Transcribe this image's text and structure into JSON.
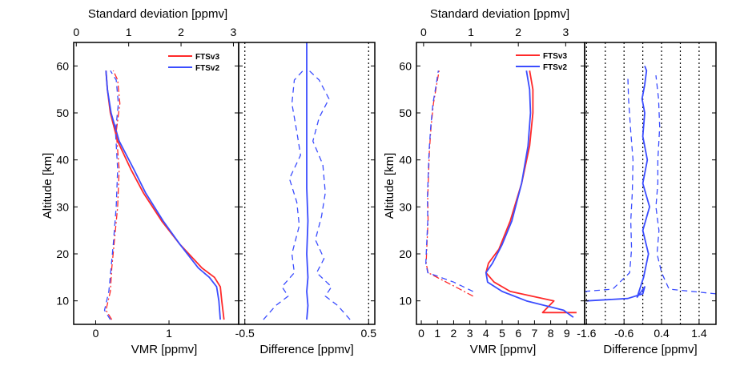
{
  "chart_data": [
    {
      "type": "line",
      "panel": "left-profile",
      "xlabel": "VMR [ppmv]",
      "ylabel": "Altitude [km]",
      "xlim": [
        -0.3,
        1.95
      ],
      "ylim": [
        5,
        65
      ],
      "x_ticks": [
        "0",
        "1"
      ],
      "y_ticks": [
        "10",
        "20",
        "30",
        "40",
        "50",
        "60"
      ],
      "top_xlabel": "Standard deviation [ppmv]",
      "top_xlim": [
        -0.05,
        3.1
      ],
      "top_ticks": [
        "0",
        "1",
        "2",
        "3"
      ],
      "legend": {
        "placement": "top-right",
        "entries": [
          "FTSv3",
          "FTSv2"
        ]
      },
      "series": [
        {
          "name": "FTSv3",
          "kind": "VMR mean",
          "color": "#ff2a2a",
          "style": "solid",
          "x": [
            1.75,
            1.72,
            1.7,
            1.62,
            1.45,
            1.15,
            0.9,
            0.65,
            0.48,
            0.3,
            0.2,
            0.16,
            0.14
          ],
          "y": [
            6,
            10,
            13,
            15,
            17,
            22,
            27,
            33,
            38,
            44,
            50,
            55,
            59
          ]
        },
        {
          "name": "FTSv2",
          "kind": "VMR mean",
          "color": "#3b4dff",
          "style": "solid",
          "x": [
            1.7,
            1.68,
            1.65,
            1.55,
            1.4,
            1.15,
            0.92,
            0.68,
            0.52,
            0.32,
            0.21,
            0.16,
            0.14
          ],
          "y": [
            6,
            10,
            13,
            15,
            17,
            22,
            27,
            33,
            38,
            44,
            50,
            55,
            59
          ]
        },
        {
          "name": "FTSv3",
          "kind": "standard deviation",
          "color": "#ff2a2a",
          "style": "dash-dot",
          "x": [
            0.22,
            0.14,
            0.2,
            0.22,
            0.25,
            0.3,
            0.32,
            0.28,
            0.33,
            0.3,
            0.24
          ],
          "y": [
            6,
            8,
            12,
            17,
            22,
            30,
            38,
            46,
            52,
            57,
            59
          ]
        },
        {
          "name": "FTSv2",
          "kind": "standard deviation",
          "color": "#3b4dff",
          "style": "dashed",
          "x": [
            0.2,
            0.12,
            0.18,
            0.21,
            0.24,
            0.28,
            0.3,
            0.27,
            0.31,
            0.28,
            0.2
          ],
          "y": [
            6,
            8,
            12,
            17,
            22,
            30,
            38,
            46,
            52,
            57,
            59
          ]
        }
      ]
    },
    {
      "type": "line",
      "panel": "left-difference",
      "xlabel": "Difference [ppmv]",
      "xlim": [
        -0.55,
        0.55
      ],
      "ylim": [
        5,
        65
      ],
      "x_ticks": [
        "-0.5",
        "0.5"
      ],
      "x_tick_values": [
        -0.5,
        0.5
      ],
      "vertical_dotted_lines": [
        -0.5,
        0.5
      ],
      "series": [
        {
          "kind": "mean difference",
          "color": "#3b4dff",
          "style": "solid",
          "x": [
            0.0,
            0.01,
            0.0,
            0.01,
            0.0,
            0.01,
            0.0,
            0.0,
            0.0,
            0.0,
            0.0,
            0.0
          ],
          "y": [
            6,
            9,
            12,
            15,
            20,
            27,
            34,
            40,
            46,
            52,
            58,
            65
          ]
        },
        {
          "kind": "difference spread (upper)",
          "color": "#3b4dff",
          "style": "dashed",
          "x": [
            0.35,
            0.25,
            0.15,
            0.2,
            0.08,
            0.14,
            0.07,
            0.12,
            0.15,
            0.13,
            0.05,
            0.1,
            0.18,
            0.1,
            0.02
          ],
          "y": [
            6,
            9,
            11,
            13,
            16,
            19,
            23,
            28,
            33,
            39,
            44,
            49,
            53,
            57,
            59
          ]
        },
        {
          "kind": "difference spread (lower)",
          "color": "#3b4dff",
          "style": "dashed",
          "x": [
            -0.35,
            -0.25,
            -0.15,
            -0.2,
            -0.1,
            -0.12,
            -0.06,
            -0.08,
            -0.14,
            -0.05,
            -0.08,
            -0.12,
            -0.1,
            -0.03
          ],
          "y": [
            6,
            9,
            11,
            13,
            16,
            20,
            26,
            31,
            36,
            41,
            46,
            52,
            57,
            59
          ]
        }
      ]
    },
    {
      "type": "line",
      "panel": "right-profile",
      "xlabel": "VMR [ppmv]",
      "ylabel": "Altitude [km]",
      "xlim": [
        -0.3,
        10.1
      ],
      "ylim": [
        5,
        65
      ],
      "x_ticks": [
        "0",
        "1",
        "2",
        "3",
        "4",
        "5",
        "6",
        "7",
        "8",
        "9"
      ],
      "y_ticks": [
        "10",
        "20",
        "30",
        "40",
        "50",
        "60"
      ],
      "top_xlabel": "Standard deviation [ppmv]",
      "top_xlim": [
        -0.15,
        3.4
      ],
      "top_ticks": [
        "0",
        "1",
        "2",
        "3"
      ],
      "legend": {
        "placement": "top-right",
        "entries": [
          "FTSv3",
          "FTSv2"
        ]
      },
      "series": [
        {
          "name": "FTSv3",
          "kind": "VMR mean",
          "color": "#ff2a2a",
          "style": "solid",
          "x": [
            9.6,
            7.5,
            8.2,
            5.5,
            4.5,
            4.0,
            4.15,
            4.8,
            5.5,
            6.2,
            6.7,
            6.9,
            6.9,
            6.7
          ],
          "y": [
            7.5,
            7.5,
            10,
            12,
            14,
            16,
            18,
            21,
            27,
            35,
            43,
            50,
            55,
            59
          ]
        },
        {
          "name": "FTSv2",
          "kind": "VMR mean",
          "color": "#3b4dff",
          "style": "solid",
          "x": [
            9.4,
            8.8,
            6.5,
            5.0,
            4.1,
            4.0,
            4.4,
            5.0,
            5.6,
            6.2,
            6.6,
            6.75,
            6.7,
            6.5
          ],
          "y": [
            6.5,
            8,
            10,
            12,
            14,
            16,
            18,
            22,
            27,
            35,
            43,
            50,
            55,
            59
          ]
        },
        {
          "name": "FTSv3",
          "kind": "standard deviation",
          "color": "#ff2a2a",
          "style": "dash-dot",
          "x": [
            3.2,
            2.1,
            0.42,
            0.3,
            0.35,
            0.42,
            0.4,
            0.45,
            0.5,
            0.6,
            0.75,
            0.95,
            1.1
          ],
          "y": [
            11,
            13,
            16,
            18,
            22,
            27,
            32,
            37,
            42,
            47,
            52,
            56,
            59
          ]
        },
        {
          "name": "FTSv2",
          "kind": "standard deviation",
          "color": "#3b4dff",
          "style": "dashed",
          "x": [
            3.2,
            2.0,
            0.4,
            0.28,
            0.33,
            0.4,
            0.38,
            0.43,
            0.48,
            0.58,
            0.72,
            0.92,
            1.05
          ],
          "y": [
            12,
            14,
            16,
            18,
            22,
            27,
            32,
            37,
            42,
            47,
            52,
            56,
            59
          ]
        }
      ]
    },
    {
      "type": "line",
      "panel": "right-difference",
      "xlabel": "Difference [ppmv]",
      "xlim": [
        -1.65,
        1.85
      ],
      "ylim": [
        5,
        65
      ],
      "x_ticks": [
        "-1.6",
        "-0.6",
        "0.4",
        "1.4"
      ],
      "x_tick_values": [
        -1.6,
        -0.6,
        0.4,
        1.4
      ],
      "vertical_dotted_lines": [
        -1.6,
        -1.1,
        -0.6,
        -0.1,
        0.4,
        0.9,
        1.4
      ],
      "series": [
        {
          "kind": "mean difference",
          "color": "#3b4dff",
          "style": "solid",
          "x": [
            -1.6,
            -0.5,
            -0.1,
            -0.05,
            -0.25,
            -0.08,
            0.05,
            -0.1,
            0.08,
            -0.1,
            0.02,
            -0.1,
            -0.05,
            -0.12,
            -0.05,
            0.0,
            -0.05
          ],
          "y": [
            10,
            10.5,
            11.5,
            13,
            10.8,
            15,
            20,
            25,
            30,
            35,
            40,
            45,
            50,
            53,
            56,
            59,
            60
          ]
        },
        {
          "kind": "difference spread (upper)",
          "color": "#3b4dff",
          "style": "dashed",
          "x": [
            1.85,
            0.6,
            0.4,
            0.28,
            0.33,
            0.25,
            0.3,
            0.3,
            0.35,
            0.32,
            0.25
          ],
          "y": [
            11.5,
            12.5,
            16,
            20,
            25,
            30,
            35,
            40,
            47,
            53,
            58
          ]
        },
        {
          "kind": "difference spread (lower)",
          "color": "#3b4dff",
          "style": "dashed",
          "x": [
            -1.65,
            -0.9,
            -0.45,
            -0.4,
            -0.42,
            -0.38,
            -0.36,
            -0.42,
            -0.48,
            -0.5
          ],
          "y": [
            12,
            12.5,
            16,
            21,
            27,
            33,
            40,
            46,
            53,
            58
          ]
        }
      ]
    }
  ]
}
